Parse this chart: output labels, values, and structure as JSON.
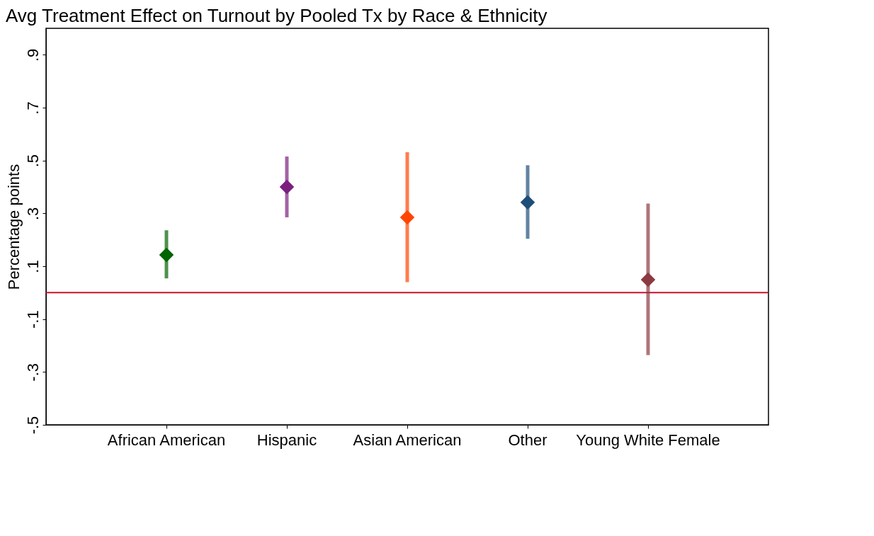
{
  "chart_data": {
    "type": "scatter",
    "title": "Avg Treatment Effect on Turnout by Pooled Tx by Race & Ethnicity",
    "ylabel": "Percentage points",
    "categories": [
      "African American",
      "Hispanic",
      "Asian American",
      "Other",
      "Young White Female"
    ],
    "values": [
      0.143,
      0.4,
      0.285,
      0.342,
      0.049
    ],
    "errors": [
      [
        0.054,
        0.236
      ],
      [
        0.285,
        0.515
      ],
      [
        0.04,
        0.531
      ],
      [
        0.204,
        0.482
      ],
      [
        -0.236,
        0.337
      ]
    ],
    "colors": [
      "#006400",
      "#7b1f7f",
      "#ff4500",
      "#1f4e79",
      "#8b3a42"
    ],
    "marker": "diamond",
    "grid": false,
    "ylim": [
      -0.5,
      1.0
    ],
    "yticks": [
      {
        "value": -0.5,
        "label": "-.5"
      },
      {
        "value": -0.3,
        "label": "-.3"
      },
      {
        "value": -0.1,
        "label": "-.1"
      },
      {
        "value": 0.1,
        "label": ".1"
      },
      {
        "value": 0.3,
        "label": ".3"
      },
      {
        "value": 0.5,
        "label": ".5"
      },
      {
        "value": 0.7,
        "label": ".7"
      },
      {
        "value": 0.9,
        "label": ".9"
      }
    ],
    "ref_lines": [
      {
        "axis": "y",
        "value": 0,
        "color": "#c8102e"
      }
    ]
  }
}
